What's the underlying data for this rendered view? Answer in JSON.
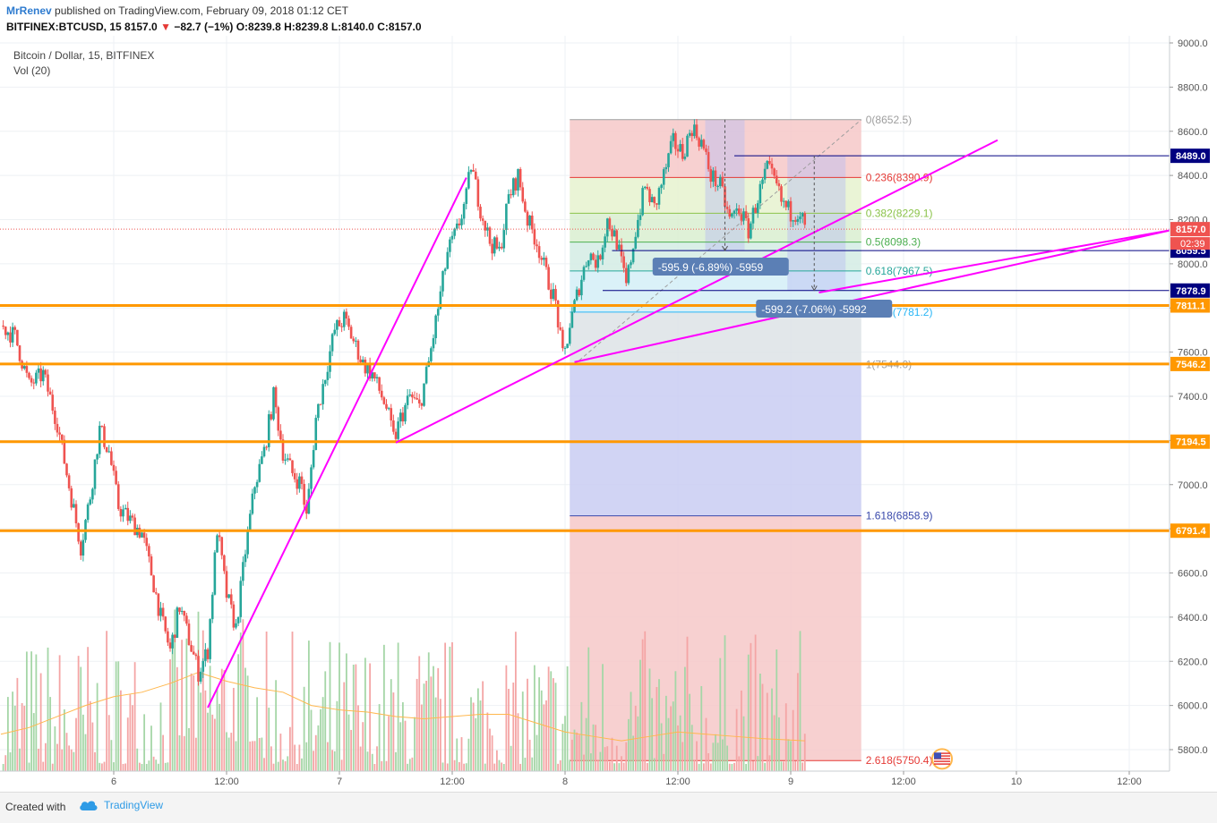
{
  "header": {
    "author": "MrRenev",
    "published_text": "published on TradingView.com, February 09, 2018 01:12 CET",
    "symbol_line": "BITFINEX:BTCUSD, 15",
    "last": "8157.0",
    "change_text": "−82.7 (−1%)",
    "open": "O:8239.8",
    "high": "H:8239.8",
    "low": "L:8140.0",
    "close": "C:8157.0"
  },
  "legend": {
    "title": "Bitcoin / Dollar, 15, BITFINEX",
    "volume": "Vol (20)"
  },
  "footer": {
    "created_with": "Created with",
    "brand": "TradingView"
  },
  "colors": {
    "up": "#26a69a",
    "down": "#ef5350",
    "magenta": "#ff00ff",
    "orange": "#ff9800",
    "navy": "#000080",
    "price_red": "#ef5350"
  },
  "chart_data": {
    "type": "candlestick",
    "ylim": [
      5700,
      9000
    ],
    "y_ticks": [
      5800,
      6000,
      6200,
      6400,
      6600,
      6800,
      7000,
      7200,
      7400,
      7600,
      7800,
      8000,
      8200,
      8400,
      8600,
      8800,
      9000
    ],
    "y_tick_labels": [
      "5800.0",
      "6000.0",
      "6200.0",
      "6400.0",
      "6600.0",
      "6800.0",
      "7000.0",
      "7200.0",
      "7400.0",
      "7600.0",
      "7800.0",
      "8000.0",
      "8200.0",
      "8400.0",
      "8600.0",
      "8800.0",
      "9000.0"
    ],
    "x_ticks": [
      {
        "t": 24,
        "label": "6"
      },
      {
        "t": 36,
        "label": "12:00"
      },
      {
        "t": 48,
        "label": "7"
      },
      {
        "t": 60,
        "label": "12:00"
      },
      {
        "t": 72,
        "label": "8"
      },
      {
        "t": 84,
        "label": "12:00"
      },
      {
        "t": 96,
        "label": "9"
      },
      {
        "t": 108,
        "label": "12:00"
      },
      {
        "t": 120,
        "label": "10"
      },
      {
        "t": 132,
        "label": "12:00"
      }
    ],
    "x_range_hours": [
      12.0,
      136.5
    ],
    "price_path": [
      [
        12.0,
        7720
      ],
      [
        13.5,
        7670
      ],
      [
        15.0,
        7450
      ],
      [
        16.5,
        7500
      ],
      [
        18.0,
        7280
      ],
      [
        19.0,
        7050
      ],
      [
        20.5,
        6720
      ],
      [
        21.5,
        6950
      ],
      [
        22.5,
        7250
      ],
      [
        23.5,
        7150
      ],
      [
        24.5,
        6900
      ],
      [
        25.5,
        6850
      ],
      [
        27.0,
        6780
      ],
      [
        28.0,
        6600
      ],
      [
        29.0,
        6400
      ],
      [
        30.0,
        6250
      ],
      [
        31.0,
        6450
      ],
      [
        32.0,
        6300
      ],
      [
        33.0,
        6150
      ],
      [
        34.0,
        6250
      ],
      [
        35.0,
        6800
      ],
      [
        36.0,
        6500
      ],
      [
        37.0,
        6350
      ],
      [
        38.0,
        6700
      ],
      [
        39.0,
        7000
      ],
      [
        40.0,
        7150
      ],
      [
        41.0,
        7400
      ],
      [
        42.0,
        7150
      ],
      [
        43.0,
        7050
      ],
      [
        44.0,
        7000
      ],
      [
        44.5,
        6850
      ],
      [
        45.5,
        7300
      ],
      [
        46.5,
        7500
      ],
      [
        47.5,
        7700
      ],
      [
        48.5,
        7750
      ],
      [
        49.5,
        7650
      ],
      [
        50.5,
        7550
      ],
      [
        51.5,
        7500
      ],
      [
        52.5,
        7400
      ],
      [
        53.0,
        7350
      ],
      [
        53.8,
        7200
      ],
      [
        54.5,
        7300
      ],
      [
        55.5,
        7400
      ],
      [
        56.5,
        7350
      ],
      [
        57.5,
        7550
      ],
      [
        58.5,
        7800
      ],
      [
        59.5,
        8050
      ],
      [
        60.5,
        8150
      ],
      [
        61.5,
        8300
      ],
      [
        62.0,
        8450
      ],
      [
        63.0,
        8250
      ],
      [
        64.0,
        8100
      ],
      [
        65.0,
        8050
      ],
      [
        66.0,
        8300
      ],
      [
        67.0,
        8400
      ],
      [
        68.0,
        8200
      ],
      [
        69.0,
        8100
      ],
      [
        70.0,
        7950
      ],
      [
        71.0,
        7820
      ],
      [
        71.8,
        7560
      ],
      [
        72.5,
        7720
      ],
      [
        73.5,
        7900
      ],
      [
        74.5,
        8050
      ],
      [
        75.5,
        8000
      ],
      [
        76.5,
        8200
      ],
      [
        77.5,
        8100
      ],
      [
        78.5,
        7900
      ],
      [
        79.5,
        8150
      ],
      [
        80.5,
        8350
      ],
      [
        81.5,
        8250
      ],
      [
        82.5,
        8400
      ],
      [
        83.5,
        8550
      ],
      [
        84.5,
        8500
      ],
      [
        85.5,
        8620
      ],
      [
        86.5,
        8550
      ],
      [
        87.5,
        8400
      ],
      [
        88.5,
        8350
      ],
      [
        89.5,
        8200
      ],
      [
        90.5,
        8250
      ],
      [
        91.5,
        8150
      ],
      [
        92.5,
        8300
      ],
      [
        93.5,
        8430
      ],
      [
        94.5,
        8350
      ],
      [
        95.0,
        8280
      ],
      [
        96.0,
        8230
      ],
      [
        97.0,
        8240
      ],
      [
        97.5,
        8157
      ]
    ],
    "vol_path": [
      [
        12.0,
        5870
      ],
      [
        15.0,
        5900
      ],
      [
        18.0,
        5950
      ],
      [
        21.0,
        6000
      ],
      [
        24.0,
        6040
      ],
      [
        27.0,
        6060
      ],
      [
        30.0,
        6100
      ],
      [
        33.0,
        6150
      ],
      [
        36.0,
        6110
      ],
      [
        39.0,
        6080
      ],
      [
        42.0,
        6060
      ],
      [
        45.0,
        6000
      ],
      [
        48.0,
        5980
      ],
      [
        51.0,
        5970
      ],
      [
        54.0,
        5950
      ],
      [
        57.0,
        5940
      ],
      [
        60.0,
        5950
      ],
      [
        63.0,
        5960
      ],
      [
        66.0,
        5960
      ],
      [
        69.0,
        5920
      ],
      [
        72.0,
        5880
      ],
      [
        75.0,
        5860
      ],
      [
        78.0,
        5840
      ],
      [
        81.0,
        5860
      ],
      [
        84.0,
        5880
      ],
      [
        87.0,
        5870
      ],
      [
        90.0,
        5860
      ],
      [
        93.0,
        5850
      ],
      [
        97.5,
        5840
      ]
    ],
    "horizontal_levels": [
      {
        "price": 7811.1,
        "label": "7811.1",
        "kind": "support"
      },
      {
        "price": 7546.2,
        "label": "7546.2",
        "kind": "support"
      },
      {
        "price": 7194.5,
        "label": "7194.5",
        "kind": "support"
      },
      {
        "price": 6791.4,
        "label": "6791.4",
        "kind": "support"
      }
    ],
    "resistance_lines": [
      {
        "price": 8489.0,
        "label": "8489.0",
        "t0": 90.0
      },
      {
        "price": 8059.5,
        "label": "8059.5",
        "t0": 77.0
      },
      {
        "price": 7878.9,
        "label": "7878.9",
        "t0": 76.0
      }
    ],
    "current_price": {
      "price": 8157.0,
      "label": "8157.0",
      "countdown": "02:39"
    },
    "fib": {
      "t_start": 72.5,
      "t_end": 103.5,
      "levels": [
        {
          "ratio": 0,
          "text": "0(8652.5)",
          "price": 8652.5,
          "color": "#9e9e9e"
        },
        {
          "ratio": 0.236,
          "text": "0.236(8390.9)",
          "price": 8390.9,
          "color": "#e53935"
        },
        {
          "ratio": 0.382,
          "text": "0.382(8229.1)",
          "price": 8229.1,
          "color": "#8bc34a"
        },
        {
          "ratio": 0.5,
          "text": "0.5(8098.3)",
          "price": 8098.3,
          "color": "#4caf50"
        },
        {
          "ratio": 0.618,
          "text": "0.618(7967.5)",
          "price": 7967.5,
          "color": "#26a69a"
        },
        {
          "ratio": 0.786,
          "text": "0.786(7781.2)",
          "price": 7781.2,
          "color": "#29b6f6"
        },
        {
          "ratio": 1,
          "text": "1(7544.0)",
          "price": 7544.0,
          "color": "#9e9e9e"
        },
        {
          "ratio": 1.618,
          "text": "1.618(6858.9)",
          "price": 6858.9,
          "color": "#3949ab"
        },
        {
          "ratio": 2.618,
          "text": "2.618(5750.4)",
          "price": 5750.4,
          "color": "#e53935"
        }
      ]
    },
    "trendlines": [
      {
        "t0": 34.0,
        "p0": 5990,
        "t1": 61.5,
        "p1": 8390
      },
      {
        "t0": 54.0,
        "p0": 7190,
        "t1": 118.0,
        "p1": 8560
      },
      {
        "t0": 73.0,
        "p0": 7555,
        "t1": 136.5,
        "p1": 8153
      },
      {
        "t0": 99.0,
        "p0": 7870,
        "t1": 136.5,
        "p1": 8153
      }
    ],
    "measures": [
      {
        "t": 89.0,
        "p_top": 8652.5,
        "p_bot": 8060,
        "label": "-595.9 (-6.89%) -5959",
        "box_t": 81.5,
        "box_p": 7975
      },
      {
        "t": 98.5,
        "p_top": 8489.0,
        "p_bot": 7880,
        "label": "-599.2 (-7.06%) -5992",
        "box_t": 92.5,
        "box_p": 7785
      }
    ]
  }
}
